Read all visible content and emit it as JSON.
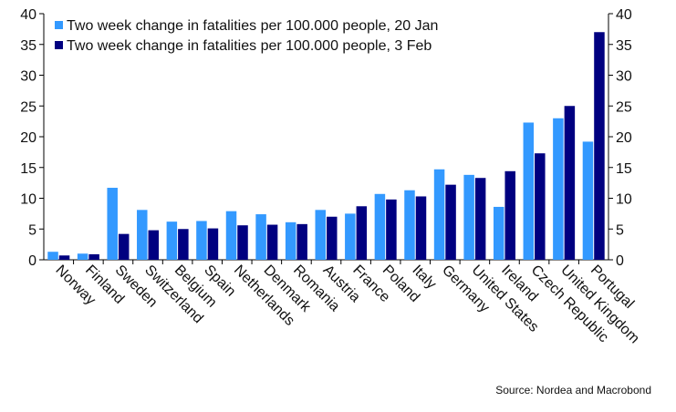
{
  "chart_data": {
    "type": "bar",
    "categories": [
      "Norway",
      "Finland",
      "Sweden",
      "Switzerland",
      "Belgium",
      "Spain",
      "Netherlands",
      "Denmark",
      "Romania",
      "Austria",
      "France",
      "Poland",
      "Italy",
      "Germany",
      "United States",
      "Ireland",
      "Czech Republic",
      "United Kingdom",
      "Portugal"
    ],
    "series": [
      {
        "name": "Two week change in fatalities per 100.000 people, 20 Jan",
        "color": "#3399ff",
        "values": [
          1.3,
          1.0,
          11.7,
          8.1,
          6.2,
          6.3,
          7.9,
          7.4,
          6.1,
          8.1,
          7.5,
          10.7,
          11.3,
          14.7,
          13.8,
          8.6,
          22.3,
          23.0,
          19.2
        ]
      },
      {
        "name": "Two week change in fatalities per 100.000 people, 3 Feb",
        "color": "#000080",
        "values": [
          0.7,
          0.9,
          4.2,
          4.8,
          5.0,
          5.1,
          5.6,
          5.7,
          5.8,
          7.0,
          8.7,
          9.8,
          10.3,
          12.2,
          13.3,
          14.4,
          17.3,
          25.0,
          37.0
        ]
      }
    ],
    "ylim": [
      0,
      40
    ],
    "yticks": [
      0,
      5,
      10,
      15,
      20,
      25,
      30,
      35,
      40
    ],
    "y_axis_both_sides": true,
    "grid": false,
    "legend_position": "top-left",
    "source": "Source: Nordea and Macrobond"
  }
}
